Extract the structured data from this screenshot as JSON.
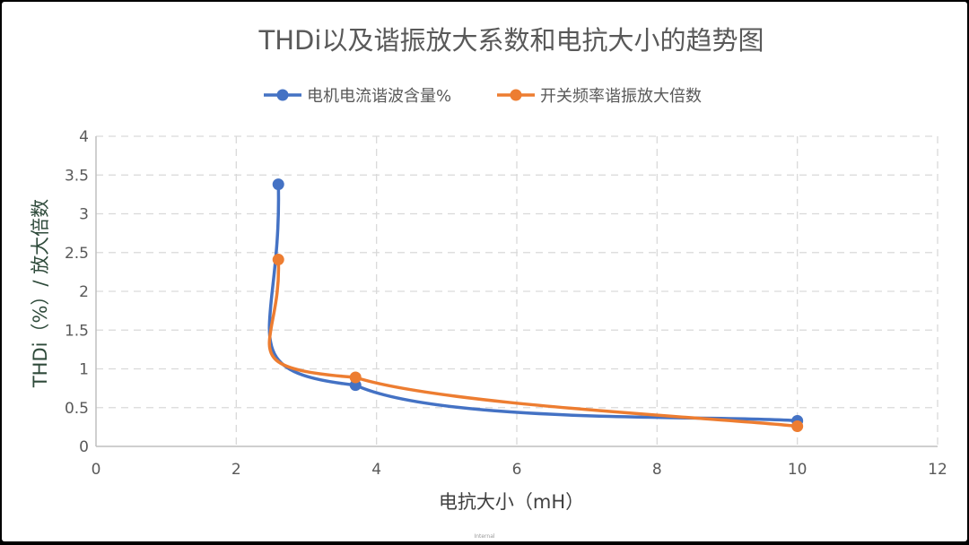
{
  "chart_data": {
    "type": "line",
    "title": "THDi以及谐振放大系数和电抗大小的趋势图",
    "xlabel": "电抗大小（mH）",
    "ylabel": "THDi（%）/ 放大倍数",
    "xlim": [
      0,
      12
    ],
    "ylim": [
      0,
      4
    ],
    "xticks": [
      "0",
      "2",
      "4",
      "6",
      "8",
      "10",
      "12"
    ],
    "yticks": [
      "0",
      "0.5",
      "1",
      "1.5",
      "2",
      "2.5",
      "3",
      "3.5",
      "4"
    ],
    "grid": true,
    "legend": "top",
    "smooth": true,
    "series": [
      {
        "name": "电机电流谐波含量%",
        "color": "#4472C4",
        "x": [
          2.6,
          3.7,
          10
        ],
        "y": [
          3.38,
          0.79,
          0.33
        ]
      },
      {
        "name": "开关频率谐振放大倍数",
        "color": "#ED7D31",
        "x": [
          2.6,
          3.7,
          10
        ],
        "y": [
          2.41,
          0.89,
          0.26
        ]
      }
    ]
  },
  "footer": "Internal"
}
